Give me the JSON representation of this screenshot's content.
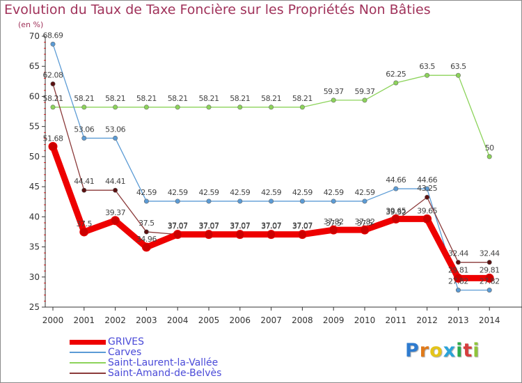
{
  "title": "Evolution du Taux de Taxe Foncière sur les Propriétés Non Bâties",
  "subtitle": "(en %)",
  "logo": {
    "text": "Proxiti",
    "colors": [
      "#2e7bcf",
      "#e07a1a",
      "#e4c419",
      "#2aa3d8",
      "#2eaa4a",
      "#d63d3d",
      "#8fc43b"
    ]
  },
  "chart_data": {
    "type": "line",
    "title": "Evolution du Taux de Taxe Foncière sur les Propriétés Non Bâties",
    "ylabel": "(en %)",
    "xlabel": "",
    "ylim": [
      25,
      70
    ],
    "yticks": [
      25,
      30,
      35,
      40,
      45,
      50,
      55,
      60,
      65,
      70
    ],
    "categories": [
      "2000",
      "2001",
      "2002",
      "2003",
      "2004",
      "2005",
      "2006",
      "2007",
      "2008",
      "2009",
      "2010",
      "2011",
      "2012",
      "2013",
      "2014"
    ],
    "series": [
      {
        "name": "GRIVES",
        "color": "#ee0000",
        "values": [
          51.68,
          37.5,
          39.37,
          34.96,
          37.07,
          37.07,
          37.07,
          37.07,
          37.07,
          37.82,
          37.82,
          39.65,
          39.65,
          29.81,
          29.81
        ],
        "labels": [
          "51.68",
          "37.5",
          "39.37",
          "34.96",
          "37.07",
          "37.07",
          "37.07",
          "37.07",
          "37.07",
          "37.82",
          "37.82",
          "39.65",
          "39.65",
          "29.81",
          "29.81"
        ]
      },
      {
        "name": "Carves",
        "color": "#5b9bd5",
        "values": [
          68.69,
          53.06,
          53.06,
          42.59,
          42.59,
          42.59,
          42.59,
          42.59,
          42.59,
          42.59,
          42.59,
          44.66,
          44.66,
          27.82,
          27.82
        ],
        "labels": [
          "68.69",
          "53.06",
          "53.06",
          "42.59",
          "42.59",
          "42.59",
          "42.59",
          "42.59",
          "42.59",
          "42.59",
          "42.59",
          "44.66",
          "44.66",
          "27.82",
          "27.82"
        ]
      },
      {
        "name": "Saint-Laurent-la-Vallée",
        "color": "#8cd35a",
        "values": [
          58.21,
          58.21,
          58.21,
          58.21,
          58.21,
          58.21,
          58.21,
          58.21,
          58.21,
          59.37,
          59.37,
          62.25,
          63.5,
          63.5,
          50
        ],
        "labels": [
          "58.21",
          "58.21",
          "58.21",
          "58.21",
          "58.21",
          "58.21",
          "58.21",
          "58.21",
          "58.21",
          "59.37",
          "59.37",
          "62.25",
          "63.5",
          "63.5",
          "50"
        ]
      },
      {
        "name": "Saint-Amand-de-Belvès",
        "color": "#8b3a3a",
        "values": [
          62.08,
          44.41,
          44.41,
          37.5,
          37.07,
          37.07,
          37.07,
          37.07,
          37.07,
          37.5,
          37.5,
          39.32,
          43.25,
          32.44,
          32.44
        ],
        "labels": [
          "62.08",
          "44.41",
          "44.41",
          "37.5",
          "37.07",
          "37.07",
          "37.07",
          "37.07",
          "37.07",
          "37.5",
          "37.5",
          "39.32",
          "43.25",
          "32.44",
          "32.44"
        ]
      }
    ]
  }
}
